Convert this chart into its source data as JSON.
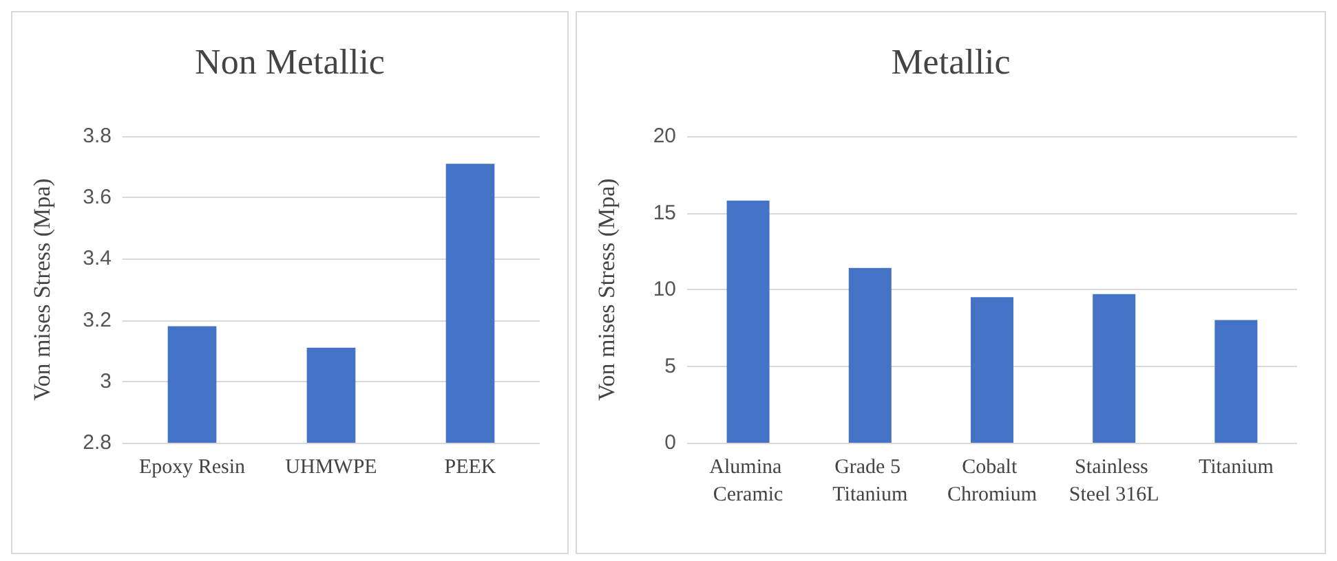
{
  "chart_data": [
    {
      "type": "bar",
      "title": "Non Metallic",
      "ylabel": "Von mises Stress (Mpa)",
      "categories": [
        "Epoxy Resin",
        "UHMWPE",
        "PEEK"
      ],
      "values": [
        3.18,
        3.11,
        3.71
      ],
      "color": "#4472c4",
      "ylim": [
        2.8,
        3.8
      ],
      "yticks": [
        2.8,
        3,
        3.2,
        3.4,
        3.6,
        3.8
      ],
      "grid": "y"
    },
    {
      "type": "bar",
      "title": "Metallic",
      "ylabel": "Von mises Stress (Mpa)",
      "categories": [
        "Alumina Ceramic",
        "Grade 5 Titanium",
        "Cobalt Chromium",
        "Stainless Steel 316L",
        "Titanium"
      ],
      "values": [
        15.8,
        11.4,
        9.5,
        9.7,
        8.0
      ],
      "color": "#4472c4",
      "ylim": [
        0,
        20
      ],
      "yticks": [
        0,
        5,
        10,
        15,
        20
      ],
      "grid": "y"
    }
  ]
}
